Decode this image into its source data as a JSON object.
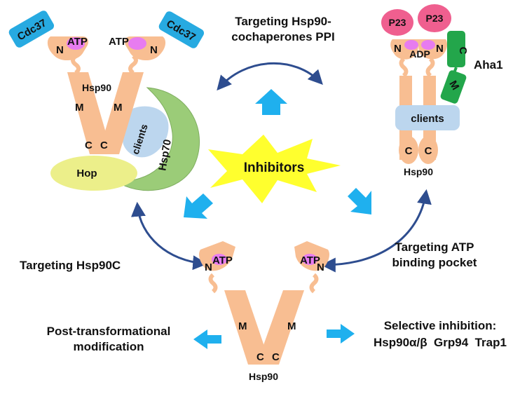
{
  "center": {
    "label": "Inhibitors"
  },
  "strategies": {
    "ppi_line1": "Targeting Hsp90-",
    "ppi_line2": "cochaperones PPI",
    "hsp90c": "Targeting Hsp90C",
    "atp_line1": "Targeting ATP",
    "atp_line2": "binding pocket",
    "ptm_line1": "Post-transformational",
    "ptm_line2": "modification",
    "sel_line1": "Selective inhibition:",
    "sel_line2": "Hsp90α/β  Grp94  Trap1"
  },
  "left_complex": {
    "cochaperone": "Cdc37",
    "domain_n": "N",
    "domain_m": "M",
    "domain_c": "C",
    "atp": "ATP",
    "protein": "Hsp90",
    "clients": "clients",
    "hsp70": "Hsp70",
    "hop": "Hop"
  },
  "right_complex": {
    "p23": "P23",
    "adp": "ADP",
    "domain_n": "N",
    "domain_c": "C",
    "domain_m": "M",
    "aha1": "Aha1",
    "clients": "clients",
    "protein": "Hsp90"
  },
  "bottom_complex": {
    "atp": "ATP",
    "domain_n": "N",
    "domain_m": "M",
    "domain_c": "C",
    "protein": "Hsp90"
  },
  "colors": {
    "hsp90": "#f8be92",
    "cdc37": "#27aae1",
    "atp_pocket": "#e77cf0",
    "clients": "#bcd6ee",
    "hsp70": "#9bcc78",
    "hop": "#ecef8a",
    "p23": "#ef5f8f",
    "aha1": "#23a64b",
    "blue_arrow": "#1fb0ee",
    "curve_arrow": "#2e4d8f",
    "burst": "#ffff2e"
  }
}
